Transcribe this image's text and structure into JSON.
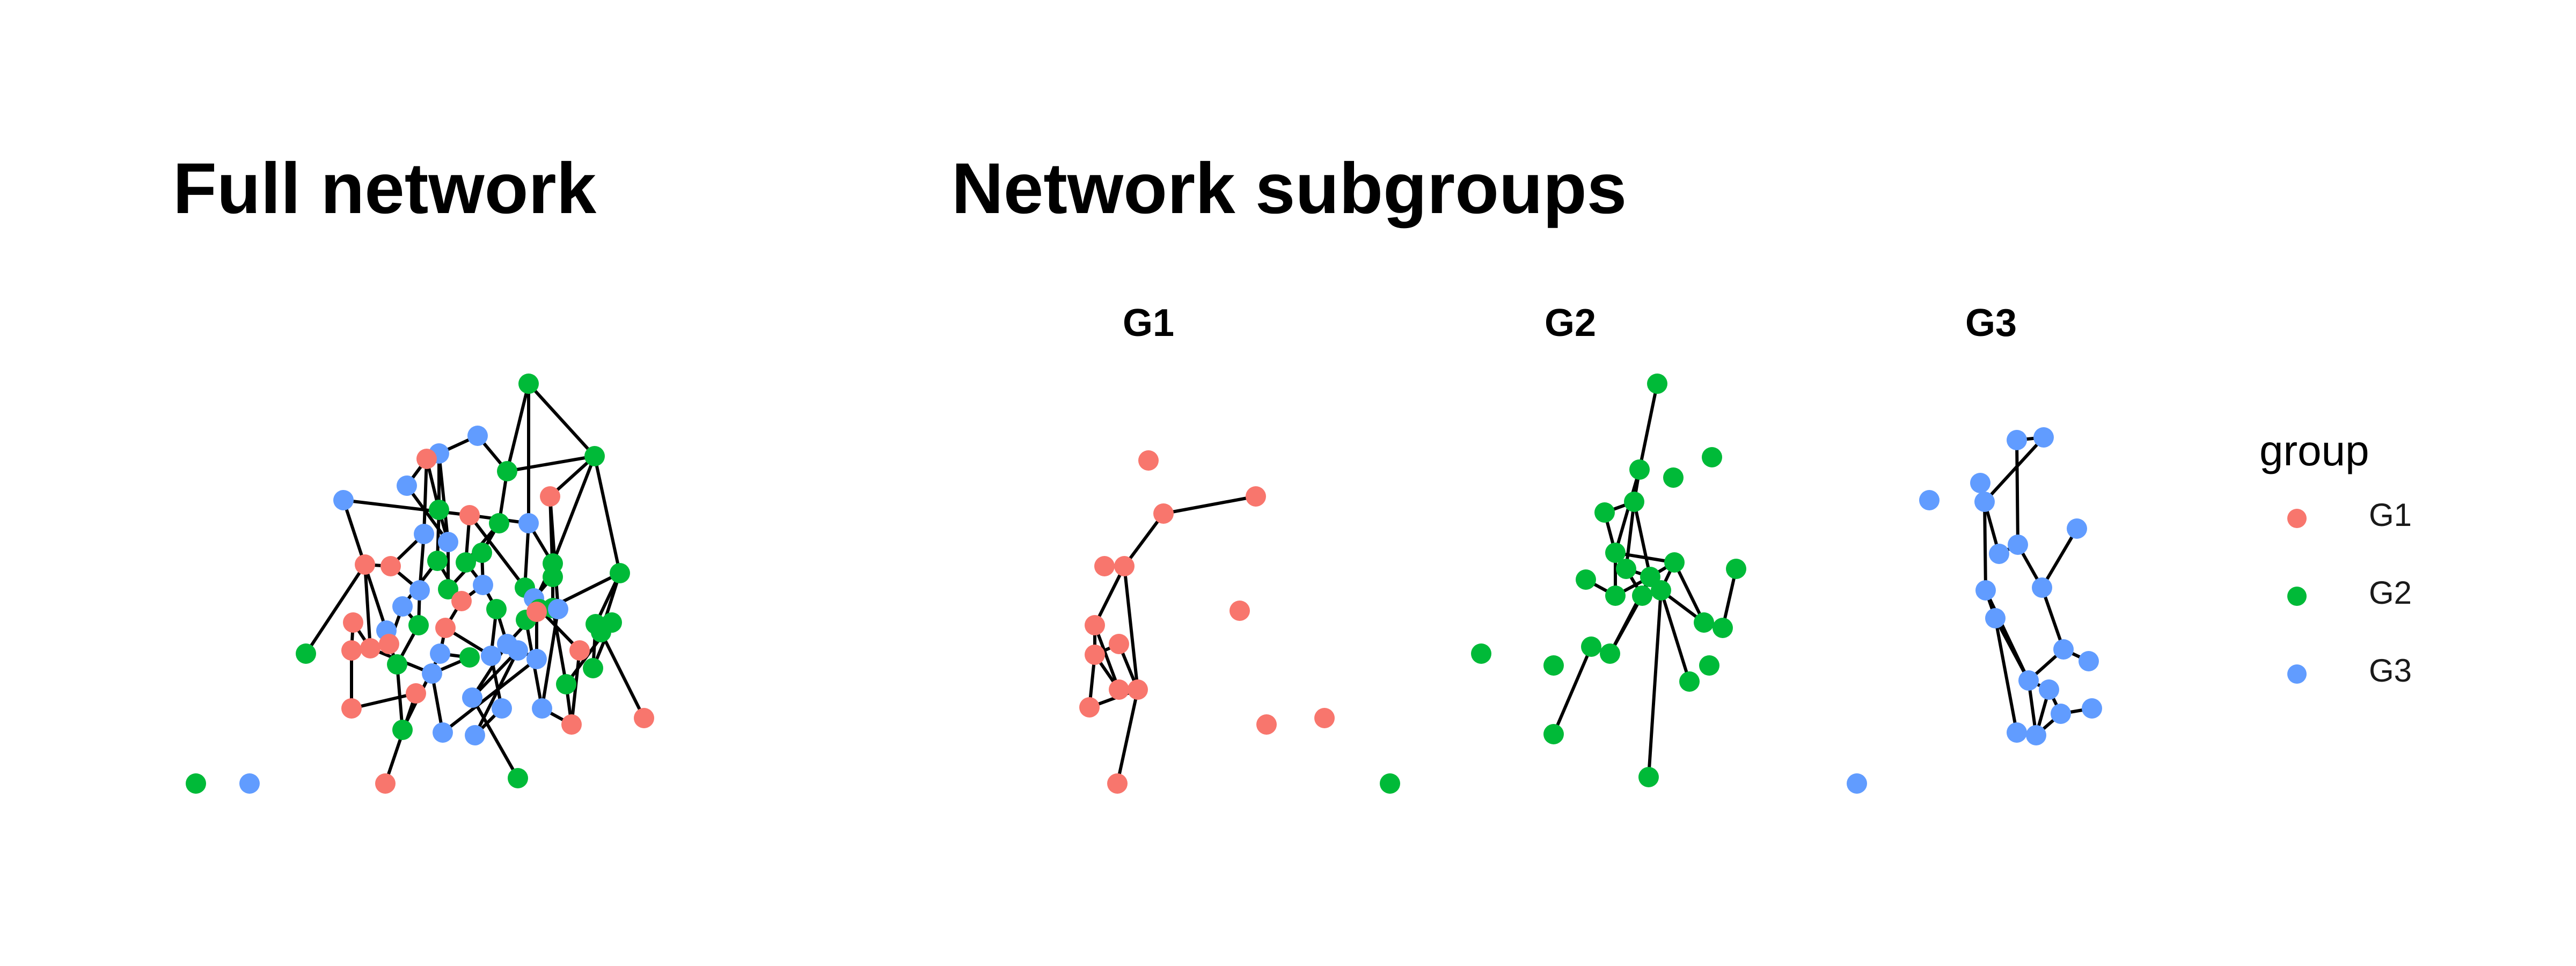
{
  "titles": {
    "full": "Full network",
    "subgroups": "Network subgroups"
  },
  "facets": [
    "G1",
    "G2",
    "G3"
  ],
  "legend": {
    "title": "group",
    "items": [
      {
        "label": "G1",
        "color": "#F8766D"
      },
      {
        "label": "G2",
        "color": "#00BA38"
      },
      {
        "label": "G3",
        "color": "#619CFF"
      }
    ]
  },
  "colors": {
    "G1": "#F8766D",
    "G2": "#00BA38",
    "G3": "#619CFF",
    "edge": "#000000"
  }
}
